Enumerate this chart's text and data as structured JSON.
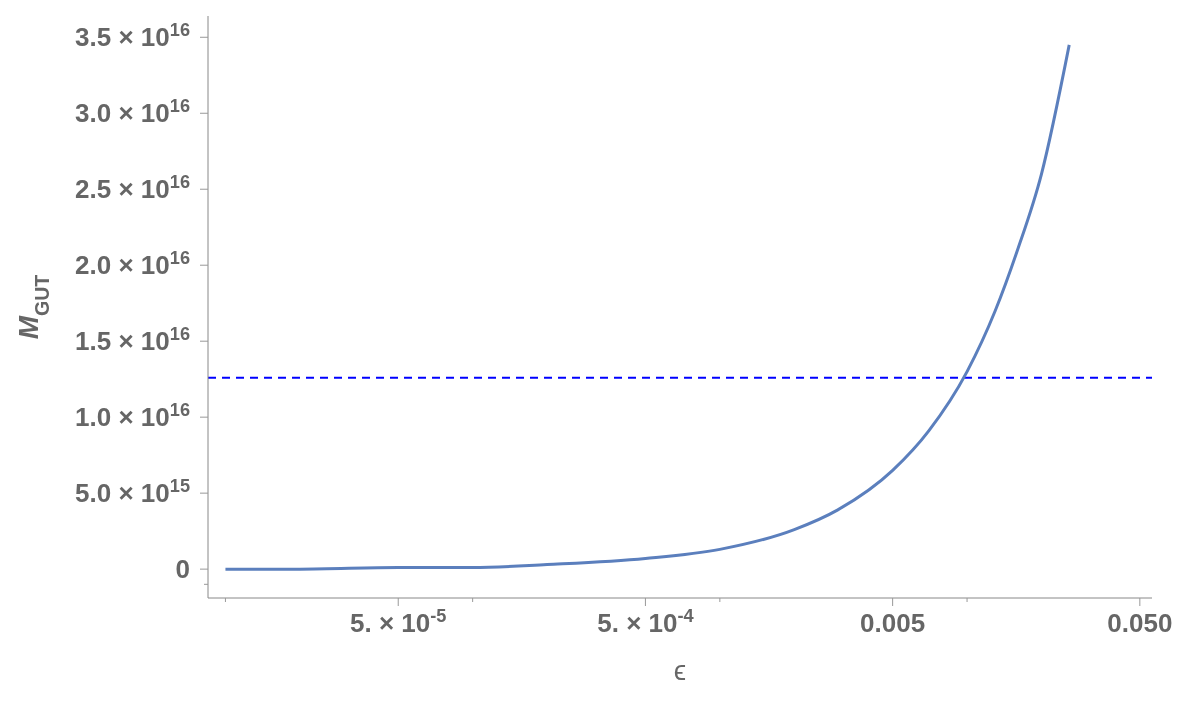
{
  "chart_data": {
    "type": "line",
    "xlabel": "ϵ",
    "ylabel": "M$_{GUT}$",
    "log": "x",
    "x": [
      1e-05,
      2e-05,
      5e-05,
      0.0001,
      0.0002,
      0.0005,
      0.001,
      0.002,
      0.003,
      0.005,
      0.007,
      0.01,
      0.013,
      0.016,
      0.02,
      0.0259
    ],
    "series": [
      {
        "color": "#5b7fbd",
        "values": [
          0,
          0,
          100000000000000.0,
          100000000000000.0,
          300000000000000.0,
          700000000000000.0,
          1300000000000000.0,
          2600000000000000.0,
          3900000000000000.0,
          6500000000000000.0,
          9100000000000000.0,
          1.3e+16,
          1.7e+16,
          2.1e+16,
          2.6e+16,
          3.45e+16
        ]
      }
    ],
    "xlim": [
      8.5e-06,
      0.056
    ],
    "xticks": [
      {
        "value": 1e-05,
        "label": null
      },
      {
        "value": 5e-05,
        "label": "5. × 10$^{-5}$"
      },
      {
        "value": 0.0001,
        "label": null
      },
      {
        "value": 0.0005,
        "label": "5. × 10$^{-4}$"
      },
      {
        "value": 0.001,
        "label": null
      },
      {
        "value": 0.005,
        "label": "0.005"
      },
      {
        "value": 0.01,
        "label": null
      },
      {
        "value": 0.05,
        "label": "0.050"
      }
    ],
    "ylim": [
      -1900000000000000.0,
      3.64e+16
    ],
    "yticks": [
      {
        "value": -1000000000000000.0,
        "label": null
      },
      {
        "value": 0,
        "label": "0"
      },
      {
        "value": 5000000000000000.0,
        "label": "5.0 × 10$^{15}$"
      },
      {
        "value": 1e+16,
        "label": "1.0 × 10$^{16}$"
      },
      {
        "value": 1.5e+16,
        "label": "1.5 × 10$^{16}$"
      },
      {
        "value": 2e+16,
        "label": "2.0 × 10$^{16}$"
      },
      {
        "value": 2.5e+16,
        "label": "2.5 × 10$^{16}$"
      },
      {
        "value": 3e+16,
        "label": "3.0 × 10$^{16}$"
      },
      {
        "value": 3.5e+16,
        "label": "3.5 × 10$^{16}$"
      }
    ],
    "ref_lines": [
      {
        "axis": "y",
        "value": 1.26e+16,
        "color": "#0000ff",
        "line_style": "dashed"
      }
    ],
    "grid": false,
    "legend": false,
    "marker": "none",
    "line_style": "solid"
  }
}
